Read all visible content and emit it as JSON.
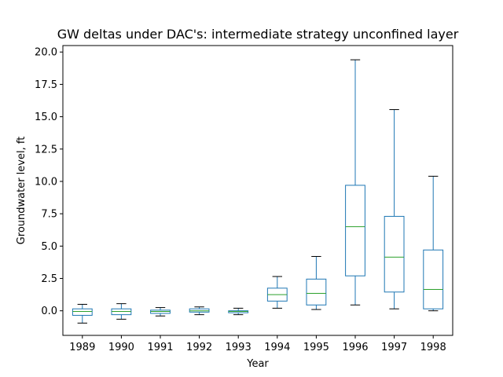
{
  "chart_data": {
    "type": "boxplot",
    "title": "GW deltas under DAC's: intermediate strategy unconfined layer",
    "xlabel": "Year",
    "ylabel": "Groundwater level, ft",
    "ylim": [
      -1.9,
      20.5
    ],
    "yticks": [
      "0.0",
      "2.5",
      "5.0",
      "7.5",
      "10.0",
      "12.5",
      "15.0",
      "17.5",
      "20.0"
    ],
    "categories": [
      "1989",
      "1990",
      "1991",
      "1992",
      "1993",
      "1994",
      "1995",
      "1996",
      "1997",
      "1998"
    ],
    "boxes": [
      {
        "whislo": -0.95,
        "q1": -0.35,
        "med": -0.05,
        "q3": 0.15,
        "whishi": 0.5
      },
      {
        "whislo": -0.65,
        "q1": -0.3,
        "med": -0.05,
        "q3": 0.15,
        "whishi": 0.55
      },
      {
        "whislo": -0.4,
        "q1": -0.2,
        "med": -0.05,
        "q3": 0.05,
        "whishi": 0.25
      },
      {
        "whislo": -0.3,
        "q1": -0.1,
        "med": 0.0,
        "q3": 0.15,
        "whishi": 0.3
      },
      {
        "whislo": -0.3,
        "q1": -0.15,
        "med": -0.05,
        "q3": 0.0,
        "whishi": 0.2
      },
      {
        "whislo": 0.2,
        "q1": 0.75,
        "med": 1.25,
        "q3": 1.75,
        "whishi": 2.65
      },
      {
        "whislo": 0.1,
        "q1": 0.45,
        "med": 1.35,
        "q3": 2.45,
        "whishi": 4.2
      },
      {
        "whislo": 0.45,
        "q1": 2.7,
        "med": 6.5,
        "q3": 9.7,
        "whishi": 19.4
      },
      {
        "whislo": 0.15,
        "q1": 1.45,
        "med": 4.15,
        "q3": 7.3,
        "whishi": 15.55
      },
      {
        "whislo": 0.0,
        "q1": 0.15,
        "med": 1.65,
        "q3": 4.7,
        "whishi": 10.4
      }
    ],
    "colors": {
      "box": "#1f77b4",
      "median": "#2ca02c",
      "whisker_cap": "#000000",
      "axis": "#000000"
    },
    "grid": false,
    "legend": "none"
  }
}
